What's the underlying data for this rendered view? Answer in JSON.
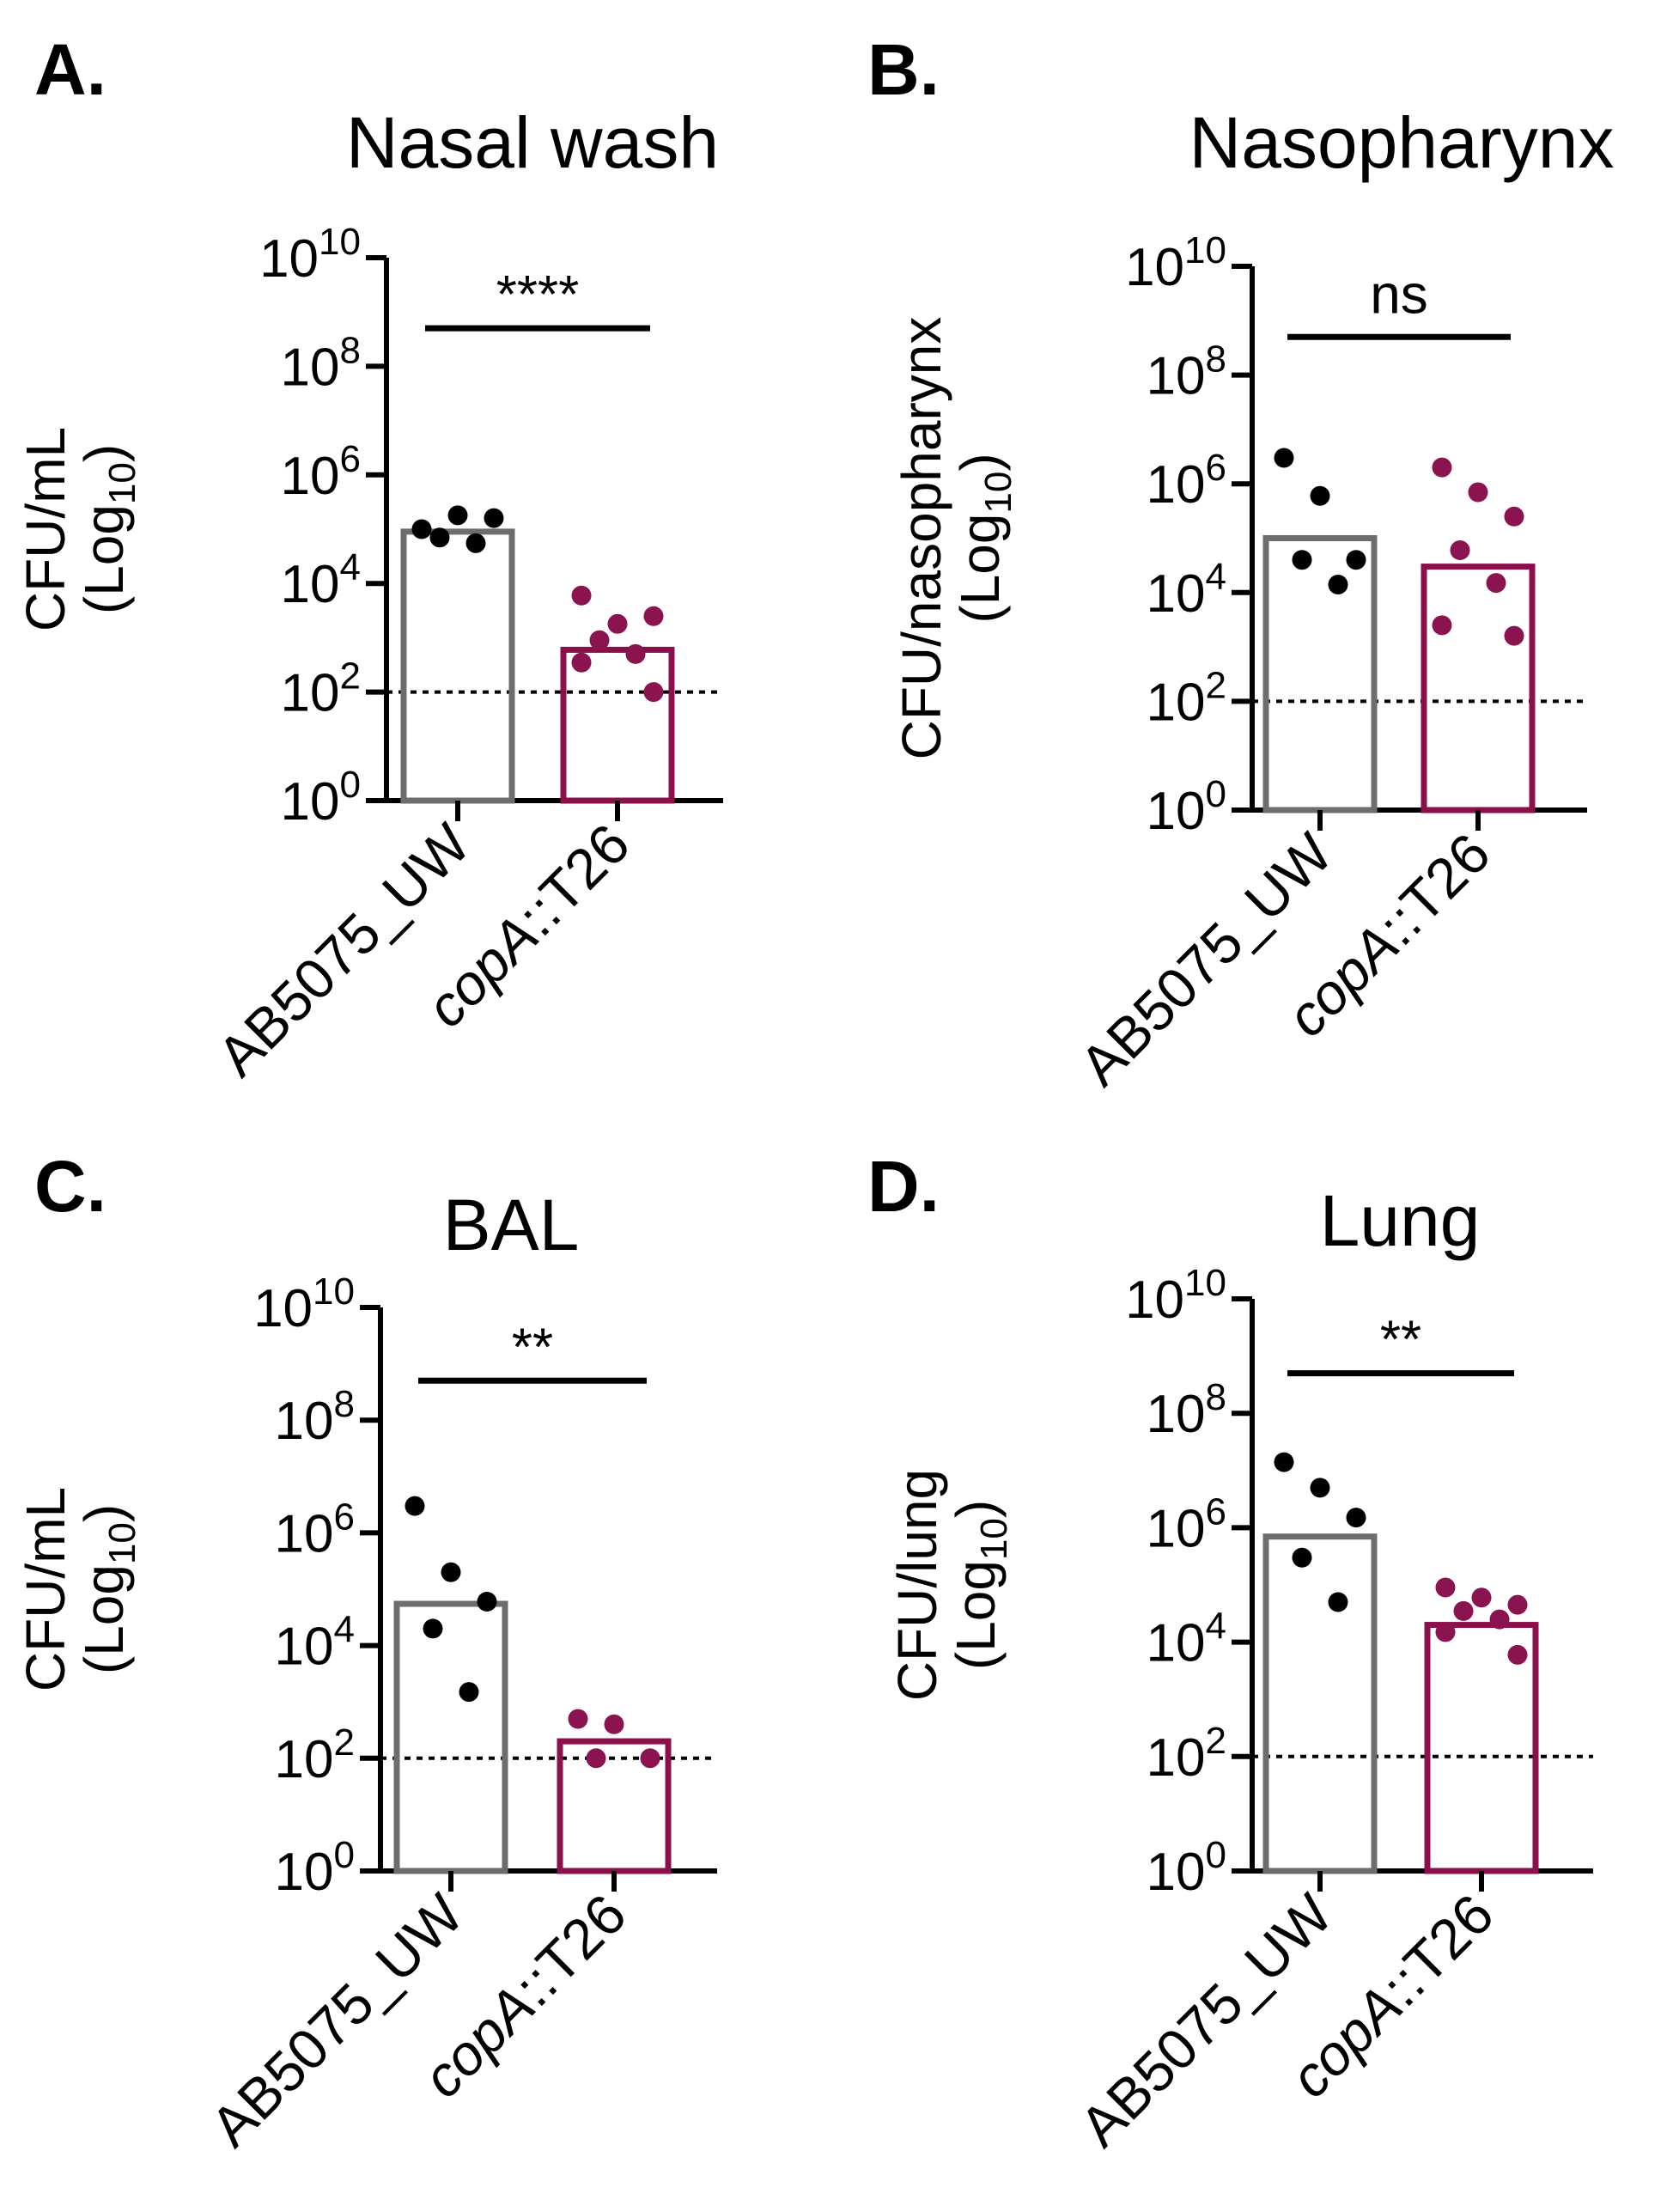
{
  "figure": {
    "groups": [
      "AB5075_UW",
      "copA::T26"
    ],
    "colors": {
      "wt_bar": "#6d6d6d",
      "mutant_bar": "#8b0f4a",
      "wt_dot": "#000000",
      "mutant_dot": "#8b1450",
      "axis": "#000000"
    }
  },
  "chart_data": [
    {
      "panel": "A.",
      "title": "Nasal wash",
      "type": "bar",
      "yscale": "log10",
      "ylabel_line1": "CFU/mL",
      "ylabel_line2_base": "(Log",
      "ylabel_line2_sub": "10",
      "ylabel_line2_end": ")",
      "ylim_exp": [
        0,
        10
      ],
      "yticks_exp": [
        0,
        2,
        4,
        6,
        8,
        10
      ],
      "tick_base": "10",
      "tick_exps": [
        "0",
        "2",
        "4",
        "6",
        "8",
        "10"
      ],
      "detection_limit": 100,
      "significance": "****",
      "categories": [
        {
          "label": "AB5075_UW",
          "italic_part": "",
          "plain_part": "AB5075_UW",
          "bar": 90000,
          "points": [
            100000,
            180000,
            160000,
            70000,
            55000
          ]
        },
        {
          "label": "copA::T26",
          "italic_part": "copA",
          "plain_part": "::T26",
          "bar": 600,
          "points": [
            6000,
            1800,
            2500,
            900,
            500,
            350,
            100
          ]
        }
      ]
    },
    {
      "panel": "B.",
      "title": "Nasopharynx",
      "type": "bar",
      "yscale": "log10",
      "ylabel_line1": "CFU/nasopharynx",
      "ylabel_line2_base": "(Log",
      "ylabel_line2_sub": "10",
      "ylabel_line2_end": ")",
      "ylim_exp": [
        0,
        10
      ],
      "yticks_exp": [
        0,
        2,
        4,
        6,
        8,
        10
      ],
      "tick_base": "10",
      "tick_exps": [
        "0",
        "2",
        "4",
        "6",
        "8",
        "10"
      ],
      "detection_limit": 100,
      "significance": "ns",
      "categories": [
        {
          "label": "AB5075_UW",
          "italic_part": "",
          "plain_part": "AB5075_UW",
          "bar": 100000,
          "points": [
            3000000,
            600000,
            40000,
            40000,
            14000
          ]
        },
        {
          "label": "copA::T26",
          "italic_part": "copA",
          "plain_part": "::T26",
          "bar": 30000,
          "points": [
            2000000,
            700000,
            250000,
            60000,
            15000,
            2500,
            1600
          ]
        }
      ]
    },
    {
      "panel": "C.",
      "title": "BAL",
      "type": "bar",
      "yscale": "log10",
      "ylabel_line1": "CFU/mL",
      "ylabel_line2_base": "(Log",
      "ylabel_line2_sub": "10",
      "ylabel_line2_end": ")",
      "ylim_exp": [
        0,
        10
      ],
      "yticks_exp": [
        0,
        2,
        4,
        6,
        8,
        10
      ],
      "tick_base": "10",
      "tick_exps": [
        "0",
        "2",
        "4",
        "6",
        "8",
        "10"
      ],
      "detection_limit": 100,
      "significance": "**",
      "categories": [
        {
          "label": "AB5075_UW",
          "italic_part": "",
          "plain_part": "AB5075_UW",
          "bar": 55000,
          "points": [
            3000000,
            200000,
            60000,
            20000,
            1500
          ]
        },
        {
          "label": "copA::T26",
          "italic_part": "copA",
          "plain_part": "::T26",
          "bar": 200,
          "points": [
            500,
            400,
            100,
            100
          ]
        }
      ]
    },
    {
      "panel": "D.",
      "title": "Lung",
      "type": "bar",
      "yscale": "log10",
      "ylabel_line1": "CFU/lung",
      "ylabel_line2_base": "(Log",
      "ylabel_line2_sub": "10",
      "ylabel_line2_end": ")",
      "ylim_exp": [
        0,
        10
      ],
      "yticks_exp": [
        0,
        2,
        4,
        6,
        8,
        10
      ],
      "tick_base": "10",
      "tick_exps": [
        "0",
        "2",
        "4",
        "6",
        "8",
        "10"
      ],
      "detection_limit": 100,
      "significance": "**",
      "categories": [
        {
          "label": "AB5075_UW",
          "italic_part": "",
          "plain_part": "AB5075_UW",
          "bar": 700000,
          "points": [
            14000000,
            5000000,
            1500000,
            300000,
            50000
          ]
        },
        {
          "label": "copA::T26",
          "italic_part": "copA",
          "plain_part": "::T26",
          "bar": 20000,
          "points": [
            90000,
            60000,
            45000,
            35000,
            25000,
            15000,
            6000
          ]
        }
      ]
    }
  ]
}
